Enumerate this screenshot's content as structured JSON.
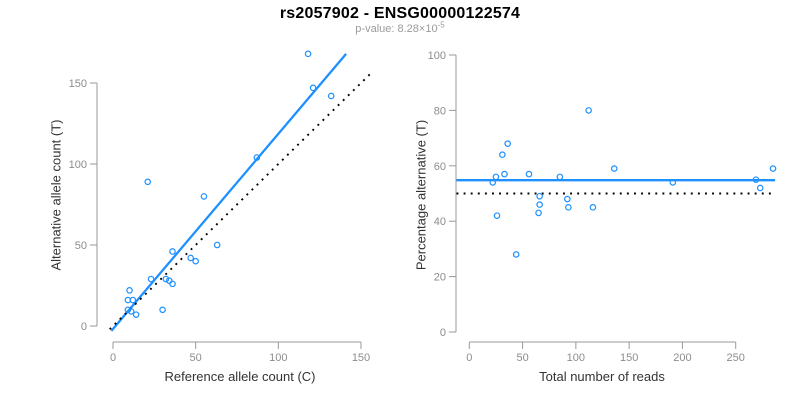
{
  "header": {
    "title": "rs2057902 - ENSG00000122574",
    "subtitle_prefix": "p-value: 8.28×10",
    "subtitle_exponent": "-5"
  },
  "colors": {
    "accent_blue": "#1E90FF",
    "line_black": "#000000",
    "axis_line": "#999999",
    "tick_text": "#8C8C8C",
    "subtitle_text": "#9B9B9B",
    "axis_label_text": "#333333",
    "title_text": "#000000",
    "background": "#FFFFFF"
  },
  "chart_data": [
    {
      "type": "scatter",
      "title": "",
      "xlabel": "Reference allele count (C)",
      "ylabel": "Alternative allele count (T)",
      "xlim": [
        -6,
        157
      ],
      "ylim": [
        -8,
        175
      ],
      "x_ticks": [
        0,
        50,
        100,
        150
      ],
      "y_ticks": [
        0,
        50,
        100,
        150
      ],
      "grid": false,
      "legend": "none",
      "marker": "open-circle",
      "points": [
        [
          9,
          10
        ],
        [
          11,
          9
        ],
        [
          14,
          7
        ],
        [
          9,
          16
        ],
        [
          12,
          16
        ],
        [
          10,
          22
        ],
        [
          30,
          10
        ],
        [
          23,
          29
        ],
        [
          32,
          29
        ],
        [
          34,
          28
        ],
        [
          36,
          26
        ],
        [
          36,
          46
        ],
        [
          47,
          42
        ],
        [
          50,
          40
        ],
        [
          63,
          50
        ],
        [
          21,
          89
        ],
        [
          55,
          80
        ],
        [
          87,
          104
        ],
        [
          118,
          168
        ],
        [
          121,
          147
        ],
        [
          132,
          142
        ]
      ],
      "lines": [
        {
          "name": "regression-line",
          "color": "accent",
          "style": "solid",
          "x1": -1,
          "y1": -3,
          "x2": 141,
          "y2": 168
        },
        {
          "name": "identity-line",
          "color": "black",
          "style": "dotted",
          "x1": -2,
          "y1": -2,
          "x2": 157,
          "y2": 157
        }
      ]
    },
    {
      "type": "scatter",
      "title": "",
      "xlabel": "Total number of reads",
      "ylabel": "Percentage alternative (T)",
      "xlim": [
        -12,
        287
      ],
      "ylim": [
        0,
        100
      ],
      "x_ticks": [
        0,
        50,
        100,
        150,
        200,
        250
      ],
      "y_ticks": [
        0,
        20,
        40,
        60,
        80,
        100
      ],
      "grid": false,
      "legend": "none",
      "marker": "open-circle",
      "points": [
        [
          22,
          54
        ],
        [
          25,
          56
        ],
        [
          26,
          42
        ],
        [
          31,
          64
        ],
        [
          33,
          57
        ],
        [
          36,
          68
        ],
        [
          44,
          28
        ],
        [
          56,
          57
        ],
        [
          65,
          43
        ],
        [
          66,
          46
        ],
        [
          66,
          49
        ],
        [
          85,
          56
        ],
        [
          92,
          48
        ],
        [
          93,
          45
        ],
        [
          112,
          80
        ],
        [
          116,
          45
        ],
        [
          136,
          59
        ],
        [
          191,
          54
        ],
        [
          269,
          55
        ],
        [
          273,
          52
        ],
        [
          285,
          59
        ]
      ],
      "lines": [
        {
          "name": "mean-line",
          "color": "accent",
          "style": "solid",
          "x1": -12,
          "y1": 54.8,
          "x2": 287,
          "y2": 54.8
        },
        {
          "name": "null-line",
          "color": "black",
          "style": "dotted",
          "x1": -12,
          "y1": 50,
          "x2": 283,
          "y2": 50
        }
      ]
    }
  ]
}
